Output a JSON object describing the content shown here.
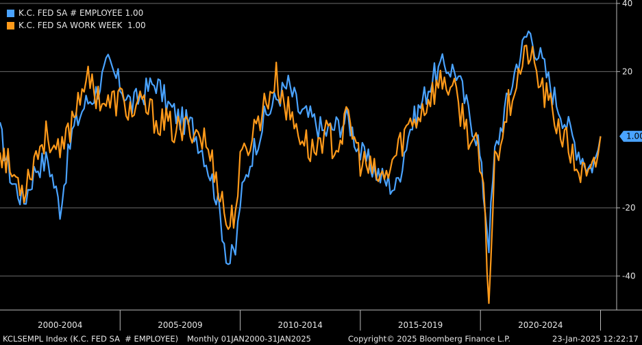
{
  "chart_data": {
    "type": "line",
    "colors": {
      "employee": "#4aa3ff",
      "workweek": "#ff9a1a",
      "grid": "#6b6b6b",
      "badge": "#4aa3ff"
    },
    "ylim": [
      -50,
      40
    ],
    "yticks": [
      -40,
      -20,
      20,
      40
    ],
    "x_start_year": 2000,
    "x_end_year": 2025.1,
    "x_period_labels": [
      "2000-2004",
      "2005-2009",
      "2010-2014",
      "2015-2019",
      "2020-2024"
    ],
    "last_value_label": "1.00",
    "series": [
      {
        "name": "K.C. FED SA # EMPLOYEE",
        "legend_value": "1.00",
        "key": "employee",
        "points": [
          [
            2000,
            2
          ],
          [
            2000.5,
            -12
          ],
          [
            2001,
            -18
          ],
          [
            2001.5,
            -8
          ],
          [
            2002,
            -6
          ],
          [
            2002.5,
            -20
          ],
          [
            2003,
            2
          ],
          [
            2003.5,
            10
          ],
          [
            2004,
            14
          ],
          [
            2004.5,
            22
          ],
          [
            2005,
            16
          ],
          [
            2005.5,
            10
          ],
          [
            2006,
            14
          ],
          [
            2006.5,
            17
          ],
          [
            2007,
            10
          ],
          [
            2007.5,
            6
          ],
          [
            2008,
            4
          ],
          [
            2008.5,
            -4
          ],
          [
            2009,
            -16
          ],
          [
            2009.5,
            -36
          ],
          [
            2009.8,
            -33
          ],
          [
            2010,
            -18
          ],
          [
            2010.5,
            -4
          ],
          [
            2011,
            6
          ],
          [
            2011.5,
            12
          ],
          [
            2012,
            16
          ],
          [
            2012.5,
            8
          ],
          [
            2013,
            6
          ],
          [
            2013.5,
            2
          ],
          [
            2014,
            4
          ],
          [
            2014.5,
            6
          ],
          [
            2015,
            -4
          ],
          [
            2015.5,
            -8
          ],
          [
            2016,
            -12
          ],
          [
            2016.5,
            -14
          ],
          [
            2017,
            2
          ],
          [
            2017.5,
            10
          ],
          [
            2018,
            18
          ],
          [
            2018.5,
            22
          ],
          [
            2019,
            20
          ],
          [
            2019.5,
            8
          ],
          [
            2019.9,
            0
          ],
          [
            2020.2,
            -20
          ],
          [
            2020.35,
            -30
          ],
          [
            2020.6,
            -4
          ],
          [
            2021,
            8
          ],
          [
            2021.5,
            22
          ],
          [
            2022,
            32
          ],
          [
            2022.5,
            24
          ],
          [
            2023,
            14
          ],
          [
            2023.5,
            6
          ],
          [
            2024,
            -2
          ],
          [
            2024.5,
            -8
          ],
          [
            2024.8,
            -6
          ],
          [
            2025,
            1
          ]
        ]
      },
      {
        "name": "K.C. FED SA WORK WEEK",
        "legend_value": "1.00",
        "key": "workweek",
        "points": [
          [
            2000,
            -2
          ],
          [
            2000.5,
            -10
          ],
          [
            2001,
            -14
          ],
          [
            2001.5,
            -4
          ],
          [
            2002,
            2
          ],
          [
            2002.5,
            -6
          ],
          [
            2003,
            6
          ],
          [
            2003.5,
            18
          ],
          [
            2004,
            14
          ],
          [
            2004.5,
            10
          ],
          [
            2005,
            12
          ],
          [
            2005.5,
            8
          ],
          [
            2006,
            10
          ],
          [
            2006.5,
            6
          ],
          [
            2007,
            4
          ],
          [
            2007.5,
            2
          ],
          [
            2008,
            4
          ],
          [
            2008.5,
            0
          ],
          [
            2009,
            -10
          ],
          [
            2009.5,
            -26
          ],
          [
            2009.8,
            -20
          ],
          [
            2010,
            -8
          ],
          [
            2010.5,
            2
          ],
          [
            2011,
            10
          ],
          [
            2011.5,
            18
          ],
          [
            2012,
            8
          ],
          [
            2012.5,
            2
          ],
          [
            2013,
            -4
          ],
          [
            2013.5,
            2
          ],
          [
            2014,
            -2
          ],
          [
            2014.5,
            6
          ],
          [
            2015,
            -6
          ],
          [
            2015.5,
            -10
          ],
          [
            2016,
            -12
          ],
          [
            2016.5,
            -4
          ],
          [
            2017,
            4
          ],
          [
            2017.5,
            8
          ],
          [
            2018,
            14
          ],
          [
            2018.5,
            18
          ],
          [
            2019,
            12
          ],
          [
            2019.5,
            2
          ],
          [
            2019.9,
            -4
          ],
          [
            2020.2,
            -22
          ],
          [
            2020.35,
            -48
          ],
          [
            2020.6,
            -6
          ],
          [
            2021,
            6
          ],
          [
            2021.5,
            18
          ],
          [
            2022,
            26
          ],
          [
            2022.5,
            16
          ],
          [
            2023,
            8
          ],
          [
            2023.5,
            0
          ],
          [
            2024,
            -8
          ],
          [
            2024.5,
            -12
          ],
          [
            2024.8,
            -8
          ],
          [
            2025,
            1
          ]
        ]
      }
    ]
  },
  "legend": {
    "employee_label": "K.C. FED SA # EMPLOYEE",
    "employee_value": "1.00",
    "workweek_label": "K.C. FED SA WORK WEEK",
    "workweek_value": "1.00"
  },
  "footer": {
    "ticker": "KCLSEMPL Index (K.C. FED SA  # EMPLOYEE)",
    "range": "Monthly 01JAN2000-31JAN2025",
    "copyright": "Copyright© 2025 Bloomberg Finance L.P.",
    "timestamp": "23-Jan-2025 12:22:17"
  }
}
